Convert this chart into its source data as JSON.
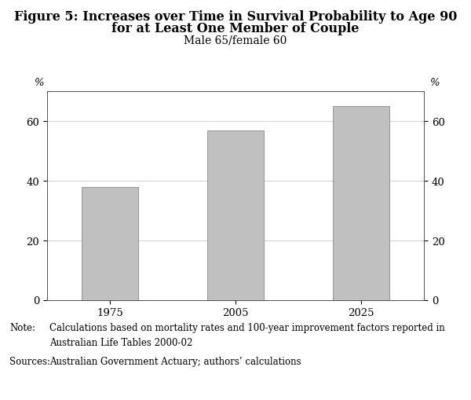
{
  "title_line1": "Figure 5: Increases over Time in Survival Probability to Age 90",
  "title_line2": "for at Least One Member of Couple",
  "subtitle": "Male 65/female 60",
  "categories": [
    "1975",
    "2005",
    "2025"
  ],
  "values": [
    38,
    57,
    65
  ],
  "bar_color": "#c0c0c0",
  "bar_edgecolor": "#888888",
  "ylim": [
    0,
    70
  ],
  "yticks": [
    0,
    20,
    40,
    60
  ],
  "ylabel_symbol": "%",
  "note_label": "Note:",
  "note_text": "Calculations based on mortality rates and 100-year improvement factors reported in\nAustralian Life Tables 2000-02",
  "sources_label": "Sources:",
  "sources_text": "Australian Government Actuary; authors’ calculations",
  "title_fontsize": 11.5,
  "subtitle_fontsize": 10,
  "tick_fontsize": 9.5,
  "note_fontsize": 8.5,
  "background_color": "#ffffff",
  "bar_width": 0.45,
  "grid_color": "#bbbbbb"
}
